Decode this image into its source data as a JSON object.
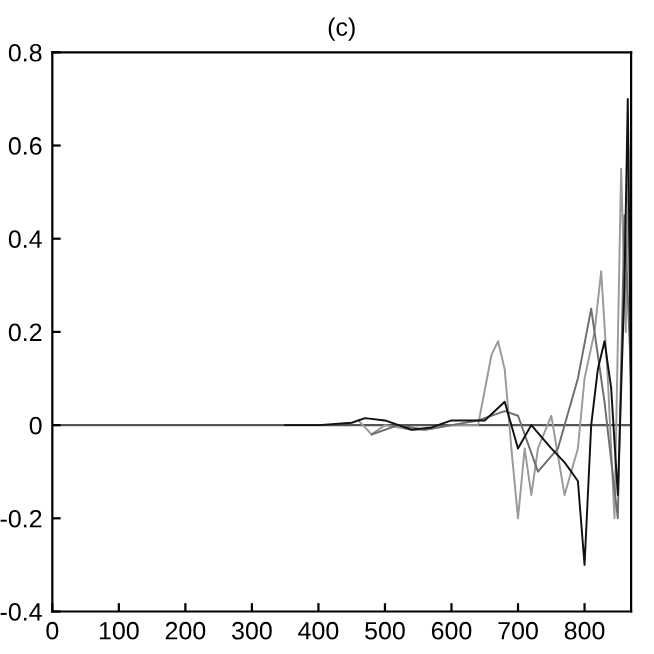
{
  "chart_data": {
    "type": "line",
    "title": "(c)",
    "xlim": [
      0,
      870
    ],
    "ylim": [
      -0.4,
      0.8
    ],
    "xticks": [
      0,
      100,
      200,
      300,
      400,
      500,
      600,
      700,
      800
    ],
    "yticks": [
      -0.4,
      -0.2,
      0,
      0.2,
      0.4,
      0.6,
      0.8
    ],
    "grid": false,
    "legend": false,
    "ref_lines": [
      {
        "axis": "y",
        "value": 0,
        "color": "#555555"
      }
    ],
    "series": [
      {
        "color": "#9a9a9a",
        "x": [
          460,
          480,
          500,
          540,
          560,
          600,
          640,
          660,
          670,
          680,
          690,
          700,
          710,
          720,
          730,
          750,
          770,
          790,
          800,
          815,
          825,
          835,
          845,
          855,
          862,
          866,
          870
        ],
        "values": [
          0.01,
          -0.02,
          0.0,
          -0.01,
          -0.01,
          0.0,
          0.0,
          0.15,
          0.18,
          0.12,
          -0.05,
          -0.2,
          -0.05,
          -0.15,
          -0.05,
          0.02,
          -0.15,
          -0.05,
          0.1,
          0.2,
          0.33,
          0.1,
          -0.2,
          0.55,
          0.2,
          0.6,
          -0.05
        ]
      },
      {
        "color": "#6e6e6e",
        "x": [
          480,
          520,
          560,
          600,
          640,
          680,
          700,
          730,
          760,
          790,
          810,
          830,
          850,
          860,
          870
        ],
        "values": [
          -0.02,
          0.0,
          -0.01,
          0.0,
          0.01,
          0.03,
          0.02,
          -0.1,
          -0.05,
          0.1,
          0.25,
          0.05,
          -0.2,
          0.45,
          0.1
        ]
      },
      {
        "color": "#111111",
        "x": [
          350,
          400,
          450,
          470,
          500,
          540,
          570,
          600,
          650,
          680,
          700,
          720,
          750,
          770,
          790,
          800,
          810,
          820,
          830,
          840,
          850,
          860,
          865,
          870
        ],
        "values": [
          0.0,
          0.0,
          0.005,
          0.015,
          0.01,
          -0.01,
          -0.005,
          0.01,
          0.01,
          0.05,
          -0.05,
          0.0,
          -0.05,
          -0.08,
          -0.12,
          -0.3,
          0.0,
          0.12,
          0.18,
          0.08,
          -0.15,
          0.3,
          0.7,
          0.05
        ]
      }
    ]
  }
}
